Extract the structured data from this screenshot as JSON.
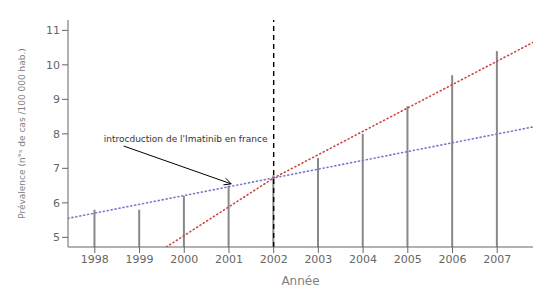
{
  "chart_data": {
    "type": "bar",
    "x": [
      1998,
      1999,
      2000,
      2001,
      2002,
      2003,
      2004,
      2005,
      2006,
      2007
    ],
    "values": [
      5.8,
      5.8,
      6.2,
      6.5,
      6.8,
      7.3,
      8.0,
      8.8,
      9.7,
      10.4
    ],
    "color": "#888888",
    "xlabel": "Année",
    "ylabel": "Prévalence (n°ˢ de cas /100 000 hab.)",
    "xlim": [
      1997.4,
      2007.8
    ],
    "ylim": [
      4.72,
      11.3
    ],
    "xticks": [
      1998,
      1999,
      2000,
      2001,
      2002,
      2003,
      2004,
      2005,
      2006,
      2007
    ],
    "yticks": [
      5,
      6,
      7,
      8,
      9,
      10,
      11
    ],
    "grid": false,
    "lines": [
      {
        "color": "#7777cc",
        "line_style": "dotted",
        "points": [
          [
            1997.4,
            5.55
          ],
          [
            2007.8,
            8.2
          ]
        ]
      },
      {
        "color": "#cc4444",
        "line_style": "dotted",
        "points": [
          [
            1999.6,
            4.72
          ],
          [
            2002.0,
            6.72
          ]
        ]
      },
      {
        "color": "#cc4444",
        "line_style": "dotted",
        "points": [
          [
            2002.0,
            6.72
          ],
          [
            2007.8,
            10.65
          ]
        ]
      }
    ],
    "vline": {
      "x": 2002,
      "color": "black",
      "line_style": "dashed"
    },
    "annotation": {
      "text": "introcduction de l'Imatinib en france",
      "xy": [
        2001.05,
        6.55
      ],
      "xytext": [
        1998.2,
        7.85
      ]
    }
  }
}
